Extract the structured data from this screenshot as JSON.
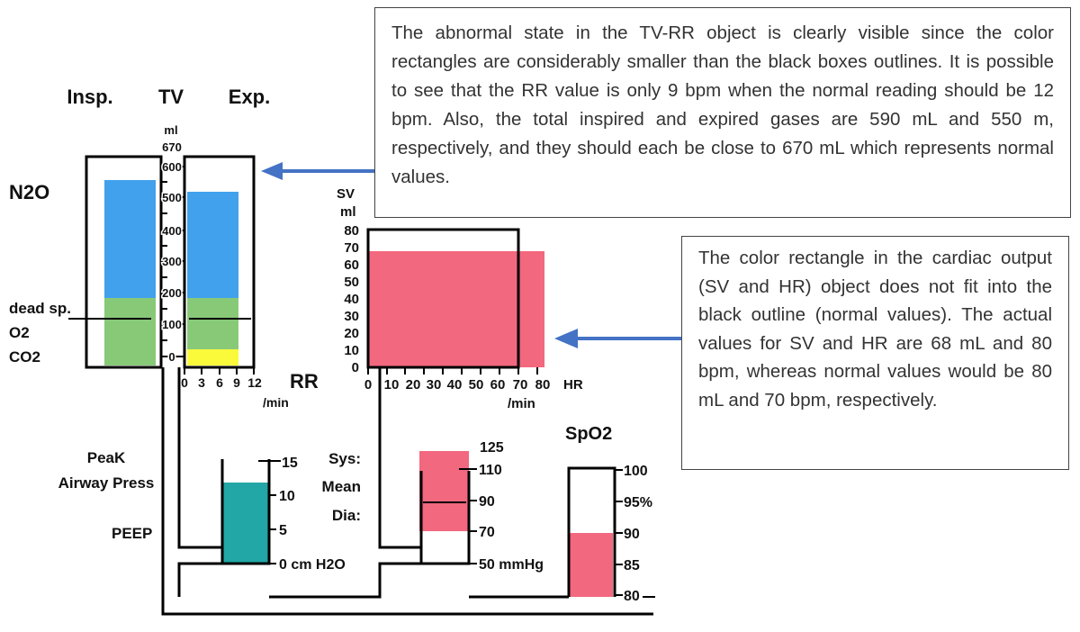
{
  "tv_rr": {
    "header_insp": "Insp.",
    "header_tv": "TV",
    "header_exp": "Exp.",
    "unit_ml": "ml",
    "scale_ticks": [
      "670",
      "600",
      "500",
      "400",
      "300",
      "200",
      "100",
      "0"
    ],
    "row_n2o": "N2O",
    "row_dead": "dead sp.",
    "row_o2": "O2",
    "row_co2": "CO2",
    "rr_ticks": [
      "0",
      "3",
      "6",
      "9",
      "12"
    ],
    "rr_title": "RR",
    "rr_unit": "/min",
    "values": {
      "insp_ml": 590,
      "exp_ml": 550,
      "normal_ml": 670,
      "rr_bpm": 9,
      "normal_rr_bpm": 12
    }
  },
  "cardiac": {
    "sv_label": "SV",
    "sv_unit": "ml",
    "sv_ticks": [
      "80",
      "70",
      "60",
      "50",
      "40",
      "30",
      "20",
      "10",
      "0"
    ],
    "hr_ticks": [
      "0",
      "10",
      "20",
      "30",
      "40",
      "50",
      "60",
      "70",
      "80"
    ],
    "hr_unit": "/min",
    "hr_label": "HR",
    "values": {
      "sv_ml": 68,
      "hr_bpm": 80,
      "normal_sv_ml": 80,
      "normal_hr_bpm": 70
    }
  },
  "airway": {
    "label_peak_1": "PeaK",
    "label_peak_2": "Airway Press",
    "label_peep": "PEEP",
    "ticks": [
      "15",
      "10",
      "5",
      "0 cm H2O"
    ],
    "values": {
      "peak": 12.5,
      "peep": 0
    }
  },
  "bp": {
    "sys": "Sys:",
    "mean": "Mean",
    "dia": "Dia:",
    "ticks": [
      "125",
      "110",
      "90",
      "70",
      "50 mmHg"
    ],
    "values": {
      "sys_mmhg": 120,
      "mean_mmhg": 90,
      "dia_mmhg": 70
    }
  },
  "spo2": {
    "title": "SpO2",
    "ticks": [
      "100",
      "95%",
      "90",
      "85",
      "80"
    ],
    "values": {
      "spo2_pct": 90
    }
  },
  "callouts": {
    "top": "The abnormal state in the TV-RR object is clearly visible since the color rectangles are considerably smaller than the black boxes outlines. It is possible to see that the RR value is only 9 bpm when the normal reading should be 12 bpm. Also, the total inspired and expired gases are 590 mL and 550 m, respectively, and they should each be close to 670 mL which represents normal values.",
    "right": "The color rectangle in the cardiac output (SV and HR) object does not fit into the black outline (normal values). The actual values for SV and HR are 68 mL and 80 bpm, whereas normal values would be 80 mL and 70 bpm, respectively."
  },
  "colors": {
    "n2o": "#42a1ec",
    "o2": "#88c978",
    "co2": "#fafa3a",
    "cardiac": "#f2687f",
    "airway": "#22a6a6",
    "arrow": "#4472c4"
  }
}
